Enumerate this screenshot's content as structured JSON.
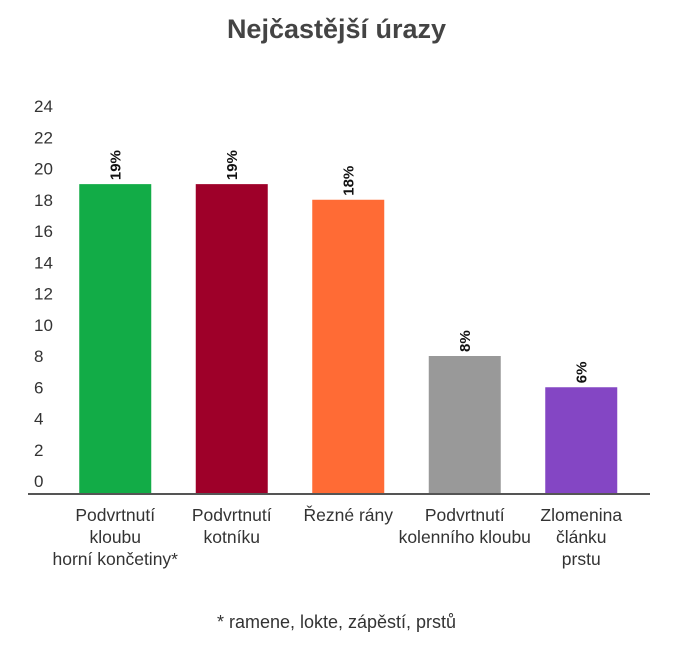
{
  "chart_data": {
    "type": "bar",
    "title": "Nejčastější úrazy",
    "xlabel": "",
    "ylabel": "",
    "ylim": [
      0,
      24
    ],
    "yticks": [
      0,
      2,
      4,
      6,
      8,
      10,
      12,
      14,
      16,
      18,
      20,
      22,
      24
    ],
    "grid": false,
    "categories": [
      [
        "Podvrtnutí",
        "kloubu",
        "horní končetiny*"
      ],
      [
        "Podvrtnutí",
        "kotníku"
      ],
      [
        "Řezné rány"
      ],
      [
        "Podvrtnutí",
        "kolenního kloubu"
      ],
      [
        "Zlomenina",
        "článku",
        "prstu"
      ]
    ],
    "values": [
      19,
      19,
      18,
      8,
      6
    ],
    "data_labels": [
      "19%",
      "19%",
      "18%",
      "8%",
      "6%"
    ],
    "colors": [
      "#12ac47",
      "#9e0029",
      "#ff6b35",
      "#999999",
      "#8446c4"
    ],
    "footnote": "* ramene, lokte, zápěstí, prstů"
  }
}
